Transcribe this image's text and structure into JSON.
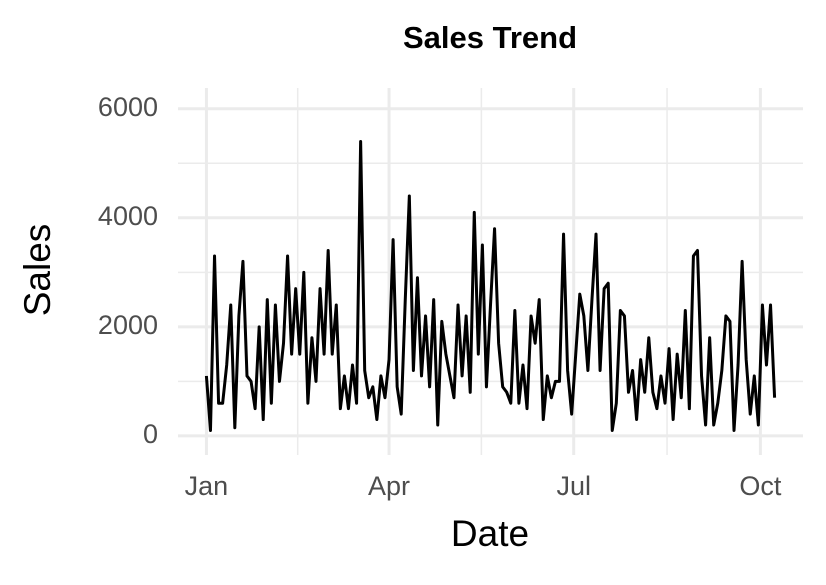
{
  "chart_data": {
    "type": "line",
    "title": "Sales Trend",
    "x_label": "Date",
    "y_label": "Sales",
    "x": [
      0,
      2,
      4,
      6,
      8,
      10,
      12,
      14,
      16,
      18,
      20,
      22,
      24,
      26,
      28,
      30,
      32,
      34,
      36,
      38,
      40,
      42,
      44,
      46,
      48,
      50,
      52,
      54,
      56,
      58,
      60,
      62,
      64,
      66,
      68,
      70,
      72,
      74,
      76,
      78,
      80,
      82,
      84,
      86,
      88,
      90,
      92,
      94,
      96,
      98,
      100,
      102,
      104,
      106,
      108,
      110,
      112,
      114,
      116,
      118,
      120,
      122,
      124,
      126,
      128,
      130,
      132,
      134,
      136,
      138,
      140,
      142,
      144,
      146,
      148,
      150,
      152,
      154,
      156,
      158,
      160,
      162,
      164,
      166,
      168,
      170,
      172,
      174,
      176,
      178,
      180,
      182,
      184,
      186,
      188,
      190,
      192,
      194,
      196,
      198,
      200,
      202,
      204,
      206,
      208,
      210,
      212,
      214,
      216,
      218,
      220,
      222,
      224,
      226,
      228,
      230,
      232,
      234,
      236,
      238,
      240,
      242,
      244,
      246,
      248,
      250,
      252,
      254,
      256,
      258,
      260,
      262,
      264,
      266,
      268,
      270,
      272,
      274,
      276,
      278,
      280
    ],
    "series": [
      {
        "name": "Sales",
        "color": "#000000",
        "values": [
          1100,
          100,
          3300,
          600,
          600,
          1300,
          2400,
          150,
          2200,
          3200,
          1100,
          1000,
          500,
          2000,
          300,
          2500,
          600,
          2400,
          1000,
          1700,
          3300,
          1500,
          2700,
          1500,
          3000,
          600,
          1800,
          1000,
          2700,
          1500,
          3400,
          1500,
          2400,
          500,
          1100,
          500,
          1300,
          600,
          5400,
          1200,
          700,
          900,
          300,
          1100,
          700,
          1400,
          3600,
          900,
          400,
          2500,
          4400,
          1200,
          2900,
          1100,
          2200,
          900,
          2500,
          200,
          2100,
          1500,
          1100,
          700,
          2400,
          1100,
          2200,
          800,
          4100,
          1500,
          3500,
          900,
          2400,
          3800,
          1700,
          900,
          800,
          600,
          2300,
          600,
          1300,
          500,
          2200,
          1700,
          2500,
          300,
          1100,
          700,
          1000,
          1000,
          3700,
          1200,
          400,
          1500,
          2600,
          2200,
          1200,
          2500,
          3700,
          1200,
          2700,
          2800,
          100,
          600,
          2300,
          2200,
          800,
          1200,
          300,
          1400,
          800,
          1800,
          800,
          500,
          1100,
          600,
          1600,
          300,
          1500,
          700,
          2300,
          500,
          3300,
          3400,
          1100,
          200,
          1800,
          200,
          600,
          1200,
          2200,
          2100,
          100,
          1300,
          3200,
          1400,
          400,
          1100,
          200,
          2400,
          1300,
          2400,
          700
        ]
      }
    ],
    "xlim": [
      -14,
      294
    ],
    "xticks": [
      {
        "value": 0,
        "label": "Jan"
      },
      {
        "value": 90,
        "label": "Apr"
      },
      {
        "value": 181,
        "label": "Jul"
      },
      {
        "value": 273,
        "label": "Oct"
      }
    ],
    "xminor_ticks": [
      45,
      135.5,
      227
    ],
    "ylim": [
      -350,
      6380
    ],
    "yticks": [
      0,
      2000,
      4000,
      6000
    ],
    "yminor_ticks": [
      1000,
      3000,
      5000
    ],
    "grid": true
  }
}
